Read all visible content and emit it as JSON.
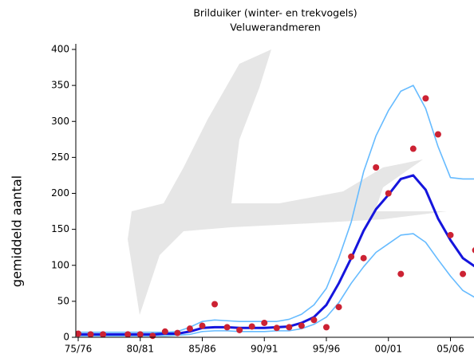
{
  "chart_data": {
    "type": "line",
    "title": "Brilduiker (winter- en trekvogels)",
    "subtitle": "Veluwerandmeren",
    "y_label": "gemiddeld aantal",
    "categories": [
      "75/76",
      null,
      null,
      null,
      null,
      "80/81",
      null,
      null,
      null,
      null,
      "85/86",
      null,
      null,
      null,
      null,
      "90/91",
      null,
      null,
      null,
      null,
      "95/96",
      null,
      null,
      null,
      null,
      "00/01",
      null,
      null,
      null,
      null,
      "05/06",
      null,
      null
    ],
    "ylim": [
      0,
      400
    ],
    "yticks": [
      0,
      50,
      100,
      150,
      200,
      250,
      300,
      350,
      400
    ],
    "series": [
      {
        "color": "#66bbff",
        "values": [
          7,
          7,
          7,
          7,
          7,
          7,
          7,
          7,
          8,
          14,
          22,
          24,
          23,
          22,
          22,
          22,
          22,
          25,
          32,
          45,
          68,
          110,
          160,
          230,
          280,
          315,
          342,
          350,
          318,
          265,
          222,
          220,
          220
        ]
      },
      {
        "color": "#66bbff",
        "values": [
          2,
          2,
          2,
          2,
          2,
          2,
          2,
          2,
          3,
          4,
          8,
          9,
          9,
          8,
          8,
          8,
          9,
          9,
          12,
          18,
          28,
          48,
          75,
          98,
          118,
          130,
          142,
          144,
          132,
          108,
          85,
          65,
          55
        ]
      },
      {
        "color": "#1515dd",
        "values": [
          4,
          4,
          4,
          4,
          4,
          4,
          4,
          5,
          5,
          8,
          13,
          14,
          14,
          13,
          13,
          13,
          14,
          15,
          20,
          28,
          45,
          75,
          110,
          148,
          178,
          198,
          220,
          225,
          205,
          165,
          135,
          110,
          98
        ]
      }
    ],
    "points": {
      "color": "#cc2233",
      "values": [
        5,
        4,
        4,
        null,
        4,
        4,
        2,
        8,
        6,
        12,
        16,
        46,
        14,
        10,
        15,
        20,
        13,
        14,
        16,
        24,
        14,
        42,
        112,
        110,
        236,
        200,
        88,
        262,
        332,
        282,
        142,
        88,
        121
      ]
    }
  }
}
